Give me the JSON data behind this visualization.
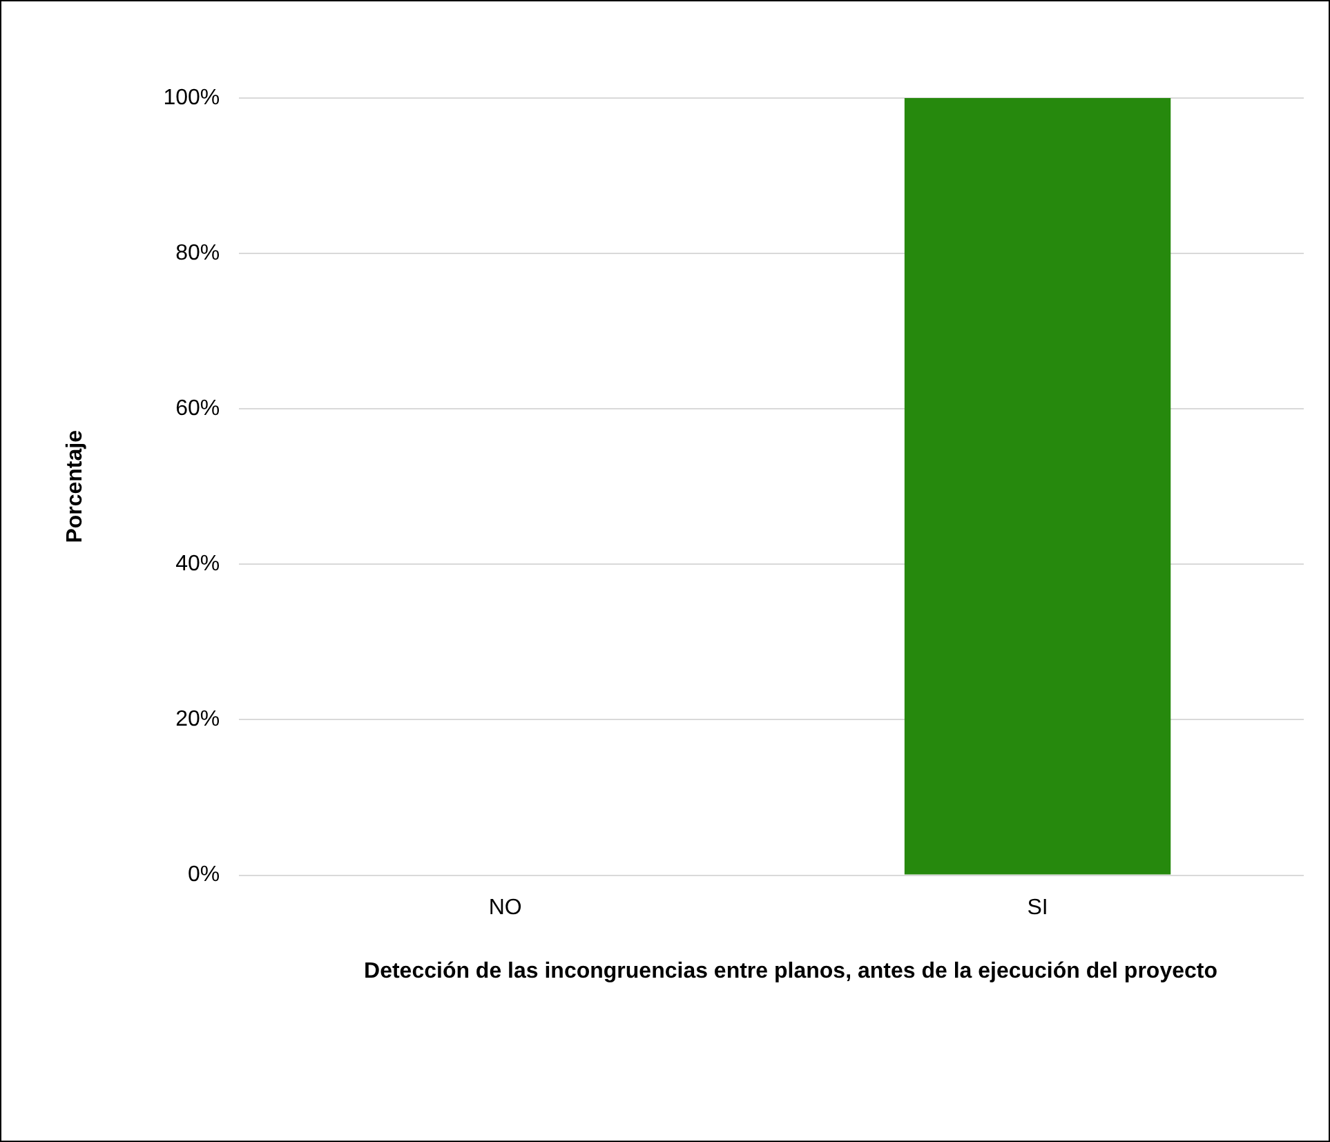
{
  "chart_data": {
    "type": "bar",
    "xlabel": "Detección de las incongruencias entre planos, antes de la ejecución del proyecto",
    "ylabel": "Porcentaje",
    "categories": [
      "NO",
      "SI"
    ],
    "values": [
      0,
      100
    ],
    "color": "#26890d",
    "ylim": [
      0,
      100
    ],
    "yticks": [
      {
        "value": 0,
        "label": "0%"
      },
      {
        "value": 20,
        "label": "20%"
      },
      {
        "value": 40,
        "label": "40%"
      },
      {
        "value": 60,
        "label": "60%"
      },
      {
        "value": 80,
        "label": "80%"
      },
      {
        "value": 100,
        "label": "100%"
      }
    ],
    "grid": "y",
    "legend": false
  }
}
